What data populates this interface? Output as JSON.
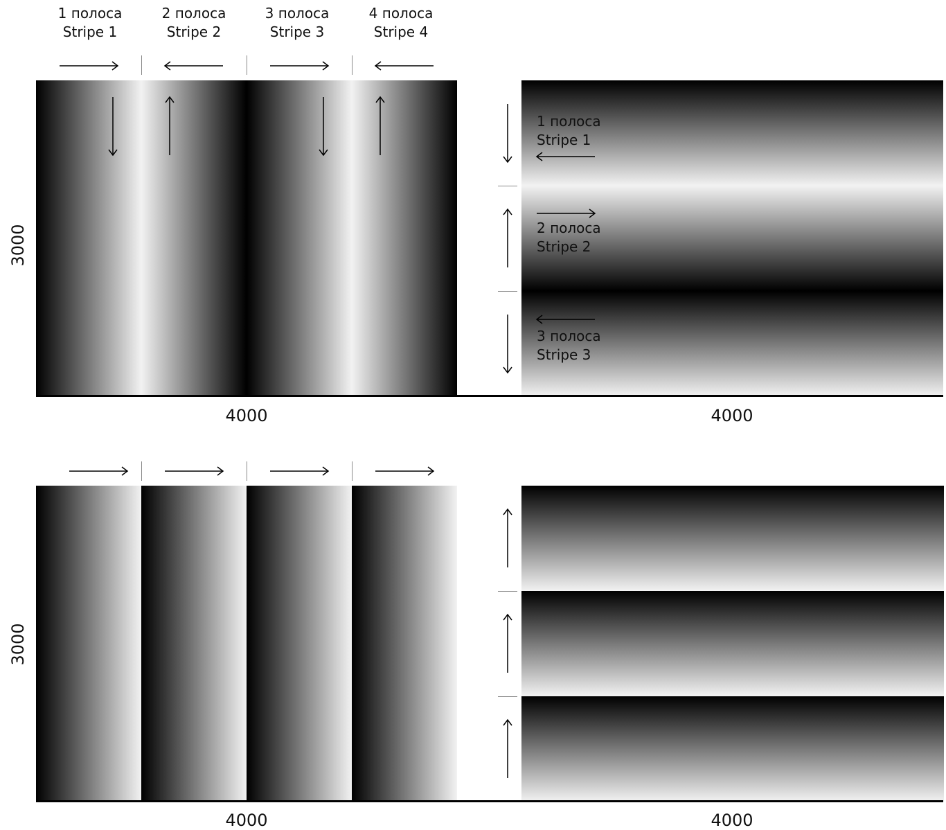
{
  "quadrants": {
    "top_left": {
      "stripes": [
        {
          "line1": "1 полоса",
          "line2": "Stripe 1"
        },
        {
          "line1": "2 полоса",
          "line2": "Stripe 2"
        },
        {
          "line1": "3 полоса",
          "line2": "Stripe 3"
        },
        {
          "line1": "4 полоса",
          "line2": "Stripe 4"
        }
      ],
      "width_label": "4000",
      "height_label": "3000"
    },
    "top_right": {
      "stripes": [
        {
          "line1": "1 полоса",
          "line2": "Stripe 1"
        },
        {
          "line1": "2 полоса",
          "line2": "Stripe 2"
        },
        {
          "line1": "3 полоса",
          "line2": "Stripe 3"
        }
      ],
      "width_label": "4000"
    },
    "bottom_left": {
      "width_label": "4000",
      "height_label": "3000"
    },
    "bottom_right": {
      "width_label": "4000"
    }
  },
  "colors": {
    "dark": "#000000",
    "light": "#f2f2f2",
    "separator": "#888888"
  }
}
